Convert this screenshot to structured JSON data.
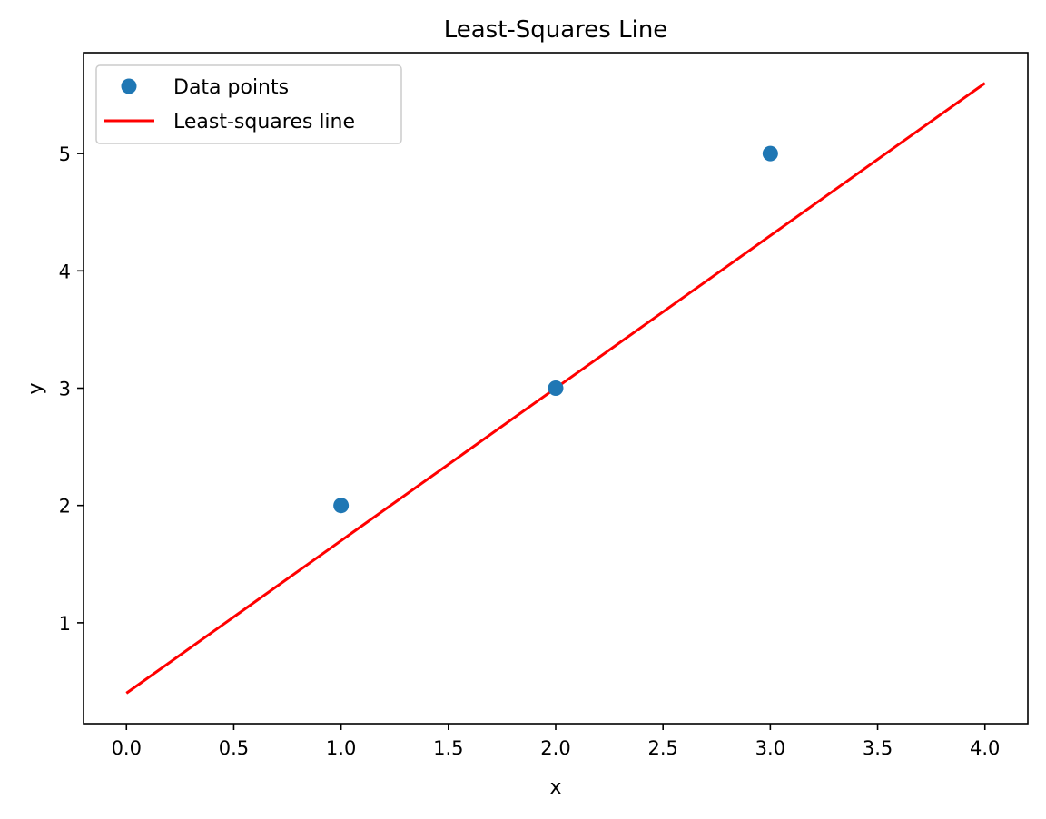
{
  "chart_data": {
    "type": "scatter",
    "title": "Least-Squares Line",
    "xlabel": "x",
    "ylabel": "y",
    "xlim": [
      -0.2,
      4.2
    ],
    "ylim": [
      0.14,
      5.86
    ],
    "xticks": [
      0.0,
      0.5,
      1.0,
      1.5,
      2.0,
      2.5,
      3.0,
      3.5,
      4.0
    ],
    "xtick_labels": [
      "0.0",
      "0.5",
      "1.0",
      "1.5",
      "2.0",
      "2.5",
      "3.0",
      "3.5",
      "4.0"
    ],
    "yticks": [
      1,
      2,
      3,
      4,
      5
    ],
    "ytick_labels": [
      "1",
      "2",
      "3",
      "4",
      "5"
    ],
    "grid": false,
    "legend_position": "top-left",
    "series": [
      {
        "name": "Data points",
        "kind": "scatter",
        "color": "#1f77b4",
        "x": [
          1,
          2,
          3
        ],
        "y": [
          2,
          3,
          5
        ]
      },
      {
        "name": "Least-squares line",
        "kind": "line",
        "color": "#ff0000",
        "x": [
          0,
          4
        ],
        "y": [
          0.4,
          5.6
        ]
      }
    ]
  }
}
